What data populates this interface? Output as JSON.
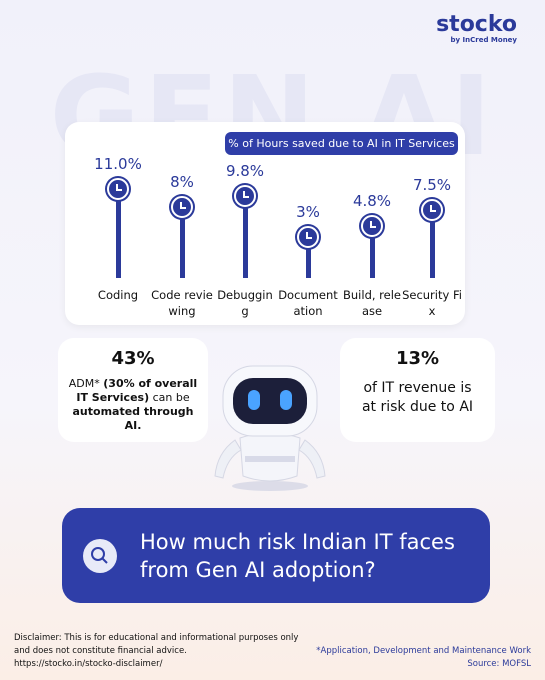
{
  "logo": {
    "name": "stocko",
    "by": "by",
    "partner": "InCred Money"
  },
  "background_text": "GEN AI",
  "chart_data": {
    "type": "lollipop",
    "title": "% of Hours saved due to AI in IT Services",
    "categories": [
      "Coding",
      "Code reviewing",
      "Debugging",
      "Documentation",
      "Build, release",
      "Security Fix"
    ],
    "values": [
      11.0,
      8,
      9.8,
      3,
      4.8,
      7.5
    ],
    "value_labels": [
      "11.0%",
      "8%",
      "9.8%",
      "3%",
      "4.8%",
      "7.5%"
    ],
    "color": "#2b3a9a"
  },
  "cards": [
    {
      "stat": "43%",
      "parts": [
        {
          "text": "ADM* ",
          "bold": false
        },
        {
          "text": "(30% of overall IT Services)",
          "bold": true
        },
        {
          "text": " can be ",
          "bold": false
        },
        {
          "text": "automated through AI.",
          "bold": true
        }
      ]
    },
    {
      "stat": "13%",
      "parts": [
        {
          "text": "of IT revenue is at risk due to AI",
          "bold": false
        }
      ]
    }
  ],
  "question": "How much risk Indian IT faces from Gen AI adoption?",
  "disclaimer": "Disclaimer: This is for educational and informational purposes only and does not constitute financial advice.",
  "disclaimer_link": "https://stocko.in/stocko-disclaimer/",
  "footnote": "*Application, Development and Maintenance Work",
  "source": "Source: MOFSL"
}
